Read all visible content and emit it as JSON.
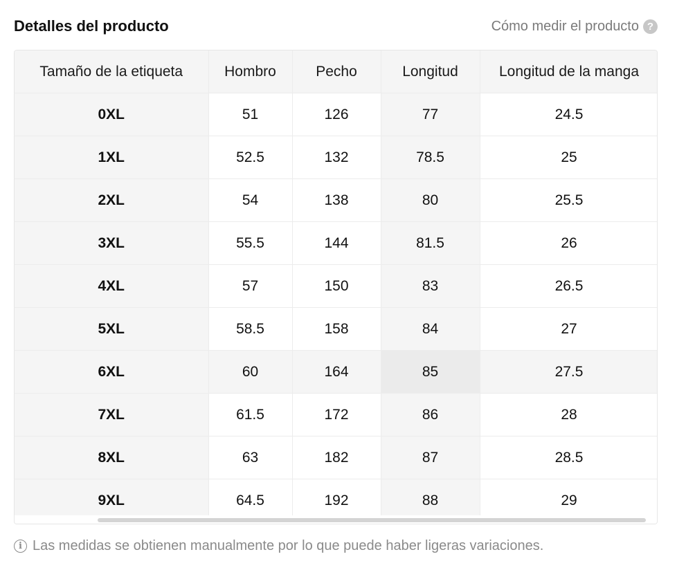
{
  "header": {
    "title": "Detalles del producto",
    "how_to_measure": "Cómo medir el producto",
    "help_icon": "question-circle-icon",
    "help_glyph": "?"
  },
  "table": {
    "columns": [
      "Tamaño de la etiqueta",
      "Hombro",
      "Pecho",
      "Longitud",
      "Longitud de la manga"
    ],
    "rows": [
      [
        "0XL",
        "51",
        "126",
        "77",
        "24.5"
      ],
      [
        "1XL",
        "52.5",
        "132",
        "78.5",
        "25"
      ],
      [
        "2XL",
        "54",
        "138",
        "80",
        "25.5"
      ],
      [
        "3XL",
        "55.5",
        "144",
        "81.5",
        "26"
      ],
      [
        "4XL",
        "57",
        "150",
        "83",
        "26.5"
      ],
      [
        "5XL",
        "58.5",
        "158",
        "84",
        "27"
      ],
      [
        "6XL",
        "60",
        "164",
        "85",
        "27.5"
      ],
      [
        "7XL",
        "61.5",
        "172",
        "86",
        "28"
      ],
      [
        "8XL",
        "63",
        "182",
        "87",
        "28.5"
      ],
      [
        "9XL",
        "64.5",
        "192",
        "88",
        "29"
      ]
    ],
    "highlighted_row_index": 6,
    "highlighted_column_index": 3
  },
  "footer": {
    "info_icon": "info-circle-icon",
    "info_glyph": "i",
    "note": "Las medidas se obtienen manualmente por lo que puede haber ligeras variaciones."
  },
  "colors": {
    "header_bg": "#f5f5f5",
    "highlight_cell": "#ebebeb",
    "muted_text": "#8a8a8a"
  }
}
